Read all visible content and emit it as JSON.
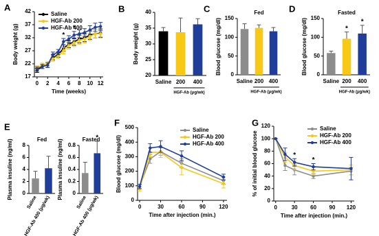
{
  "chart_data": [
    {
      "type": "line",
      "label": "A",
      "ylabel": "Body weight (g)",
      "xlabel": "Time (weeks)",
      "x": [
        0,
        1,
        2,
        3,
        4,
        5,
        6,
        7,
        8,
        9,
        10,
        11,
        12
      ],
      "xlim": [
        -0.5,
        12.5
      ],
      "xticks": [
        0,
        2,
        4,
        6,
        8,
        10,
        12
      ],
      "ylim": [
        17,
        42
      ],
      "yticks": [
        17,
        22,
        27,
        32,
        37,
        42
      ],
      "legend": "upper left",
      "series": [
        {
          "name": "Saline",
          "color": "#000000",
          "values": [
            19.5,
            21,
            21.5,
            24.5,
            25.5,
            28,
            29.5,
            30.5,
            31.5,
            32,
            33,
            33.5,
            33.8
          ],
          "errors": [
            0.8,
            0.8,
            0.9,
            1,
            1,
            1.2,
            1.3,
            1.4,
            1.5,
            1.5,
            1.6,
            1.6,
            1.6
          ]
        },
        {
          "name": "HGF-Ab 200",
          "color": "#f7c815",
          "values": [
            20.5,
            21.5,
            22,
            24,
            25,
            27,
            29,
            30,
            31,
            31.5,
            32.5,
            33.5,
            33.5
          ],
          "errors": [
            0.8,
            0.8,
            0.9,
            1,
            1,
            1.2,
            1.3,
            1.4,
            1.5,
            1.5,
            1.6,
            1.6,
            1.6
          ]
        },
        {
          "name": "HGF-Ab 400",
          "color": "#1f3d99",
          "values": [
            20,
            21,
            21.5,
            25.5,
            26.5,
            30.5,
            31.5,
            33,
            33.5,
            34,
            35,
            36,
            36.3
          ],
          "errors": [
            0.8,
            0.8,
            0.9,
            1,
            1,
            1.2,
            1.3,
            1.4,
            1.5,
            1.5,
            1.6,
            1.6,
            1.6
          ]
        }
      ],
      "annotations": [
        {
          "text": "*",
          "x": 5,
          "series": "HGF-Ab 400"
        },
        {
          "text": "*",
          "x": 7,
          "series": "HGF-Ab 400"
        }
      ]
    },
    {
      "type": "bar",
      "label": "B",
      "ylabel": "Body weight (g)",
      "categories": [
        "Saline",
        "200",
        "400"
      ],
      "group_label": "HGF-Ab (μg/wk)",
      "values": [
        34,
        33.7,
        36.2
      ],
      "errors": [
        1.2,
        4.5,
        1.8
      ],
      "colors": [
        "#000000",
        "#f7c815",
        "#1f3d99"
      ],
      "ylim": [
        20,
        40
      ],
      "yticks": [
        20,
        25,
        30,
        35,
        40
      ]
    },
    {
      "type": "bar",
      "label": "C",
      "title": "Fed",
      "ylabel": "Blood glucose (mg/dl)",
      "categories": [
        "Saline",
        "200",
        "400"
      ],
      "group_label": "HGF-Ab (μg/wk)",
      "values": [
        122,
        125,
        116
      ],
      "errors": [
        14,
        8,
        10
      ],
      "colors": [
        "#8c8c8c",
        "#f7c815",
        "#1f3d99"
      ],
      "ylim": [
        0,
        150
      ],
      "yticks": [
        0,
        50,
        100,
        150
      ]
    },
    {
      "type": "bar",
      "label": "D",
      "title": "Fasted",
      "ylabel": "Blood glucose (mg/dl)",
      "categories": [
        "Saline",
        "200",
        "400"
      ],
      "group_label": "HGF-Ab (μg/wk)",
      "values": [
        58,
        96,
        110
      ],
      "errors": [
        5,
        18,
        22
      ],
      "colors": [
        "#8c8c8c",
        "#f7c815",
        "#1f3d99"
      ],
      "ylim": [
        0,
        150
      ],
      "yticks": [
        0,
        50,
        100,
        150
      ],
      "annotations": [
        {
          "text": "*",
          "category": "200"
        },
        {
          "text": "*",
          "category": "400"
        }
      ]
    },
    {
      "type": "bar",
      "label": "E",
      "title": "Fed",
      "ylabel": "Plasma insuline (ng/ml)",
      "categories": [
        "Saline",
        "HGF-Ab 400 (μg/wk)"
      ],
      "values": [
        2.5,
        4.2
      ],
      "errors": [
        1.2,
        2.0
      ],
      "colors": [
        "#8c8c8c",
        "#1f3d99"
      ],
      "ylim": [
        0,
        8
      ],
      "yticks": [
        0,
        2,
        4,
        6,
        8
      ]
    },
    {
      "type": "bar",
      "title": "Fasted",
      "ylabel": "Plasma insuline (ng/ml)",
      "categories": [
        "Saline",
        "HGF-Ab 400 (μg/wk)"
      ],
      "values": [
        0.34,
        0.67
      ],
      "errors": [
        0.18,
        0.2
      ],
      "colors": [
        "#8c8c8c",
        "#1f3d99"
      ],
      "ylim": [
        0,
        0.8
      ],
      "yticks": [
        0,
        0.2,
        0.4,
        0.6,
        0.8
      ],
      "annotations": [
        {
          "text": "*",
          "category": "HGF-Ab 400 (μg/wk)"
        }
      ]
    },
    {
      "type": "line",
      "label": "F",
      "ylabel": "Blood glucose (mg/dl)",
      "xlabel": "Time after injection (min.)",
      "x": [
        0,
        15,
        30,
        60,
        120
      ],
      "xlim": [
        -3,
        125
      ],
      "xticks": [
        0,
        30,
        60,
        90,
        120
      ],
      "ylim": [
        0,
        500
      ],
      "yticks": [
        0,
        100,
        200,
        300,
        400,
        500
      ],
      "legend": "upper right",
      "series": [
        {
          "name": "Saline",
          "color": "#8c8c8c",
          "values": [
            95,
            285,
            335,
            255,
            135
          ],
          "errors": [
            15,
            30,
            25,
            30,
            25
          ]
        },
        {
          "name": "HGF-Ab 200",
          "color": "#f7c815",
          "values": [
            80,
            330,
            330,
            225,
            115
          ],
          "errors": [
            15,
            30,
            35,
            50,
            30
          ]
        },
        {
          "name": "HGF-Ab 400",
          "color": "#1f3d99",
          "values": [
            95,
            360,
            370,
            305,
            160
          ],
          "errors": [
            15,
            30,
            40,
            35,
            20
          ]
        }
      ]
    },
    {
      "type": "line",
      "label": "G",
      "ylabel": "% of initial blood glucose",
      "xlabel": "Time after injection (min.)",
      "x": [
        0,
        15,
        30,
        60,
        120
      ],
      "xlim": [
        -3,
        125
      ],
      "xticks": [
        0,
        30,
        60,
        90,
        120
      ],
      "ylim": [
        0,
        120
      ],
      "yticks": [
        0,
        20,
        40,
        60,
        80,
        100,
        120
      ],
      "legend": "upper right",
      "series": [
        {
          "name": "Saline",
          "color": "#8c8c8c",
          "values": [
            100,
            57,
            50,
            40,
            48
          ],
          "errors": [
            0,
            8,
            8,
            4,
            6
          ]
        },
        {
          "name": "HGF-Ab 200",
          "color": "#f7c815",
          "values": [
            100,
            70,
            57,
            48,
            50
          ],
          "errors": [
            0,
            8,
            7,
            6,
            8
          ]
        },
        {
          "name": "HGF-Ab 400",
          "color": "#1f3d99",
          "values": [
            100,
            75,
            62,
            55,
            52
          ],
          "errors": [
            0,
            10,
            6,
            5,
            18
          ]
        }
      ],
      "annotations": [
        {
          "text": "*",
          "x": 30,
          "series": "HGF-Ab 400"
        },
        {
          "text": "*",
          "x": 60,
          "series": "HGF-Ab 400"
        }
      ]
    }
  ]
}
